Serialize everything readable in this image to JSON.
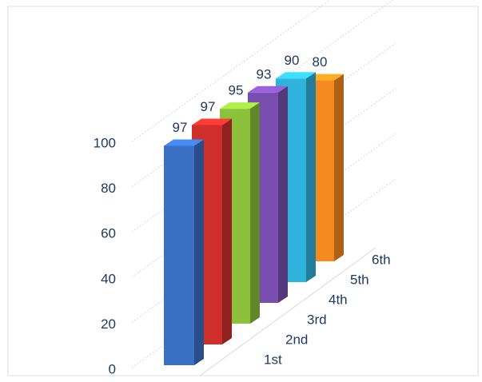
{
  "chart_data": {
    "type": "bar3d",
    "categories": [
      "1st",
      "2nd",
      "3rd",
      "4th",
      "5th",
      "6th"
    ],
    "values": [
      97,
      97,
      95,
      93,
      90,
      80
    ],
    "colors": [
      "#3a6fc4",
      "#cf2f2b",
      "#8cc13c",
      "#7a4eb0",
      "#2fb3dc",
      "#f58a1e"
    ],
    "ylim": [
      0,
      100
    ],
    "yticks": [
      0,
      20,
      40,
      60,
      80,
      100
    ],
    "grid": true
  }
}
